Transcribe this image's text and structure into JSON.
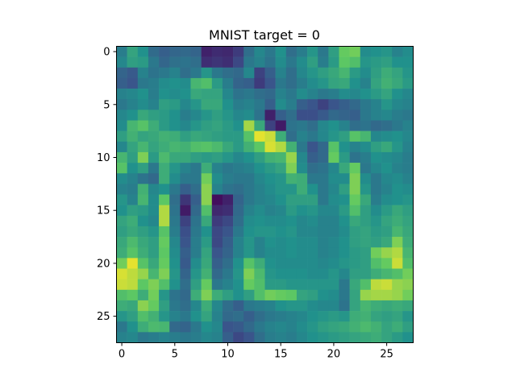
{
  "chart_data": {
    "type": "heatmap",
    "title": "MNIST target = 0",
    "xlabel": "",
    "ylabel": "",
    "xlim": [
      -0.5,
      27.5
    ],
    "ylim": [
      27.5,
      -0.5
    ],
    "x_ticks": [
      0,
      5,
      10,
      15,
      20,
      25
    ],
    "y_ticks": [
      0,
      5,
      10,
      15,
      20,
      25
    ],
    "colormap": "viridis",
    "grid": false,
    "legend": "none",
    "value_range": [
      0,
      1
    ],
    "z": [
      [
        0.42,
        0.58,
        0.5,
        0.35,
        0.3,
        0.33,
        0.34,
        0.32,
        0.1,
        0.13,
        0.12,
        0.18,
        0.36,
        0.46,
        0.4,
        0.5,
        0.36,
        0.42,
        0.52,
        0.4,
        0.56,
        0.76,
        0.78,
        0.48,
        0.5,
        0.52,
        0.44,
        0.48
      ],
      [
        0.46,
        0.56,
        0.54,
        0.4,
        0.33,
        0.37,
        0.38,
        0.36,
        0.14,
        0.16,
        0.14,
        0.22,
        0.4,
        0.44,
        0.38,
        0.48,
        0.4,
        0.48,
        0.56,
        0.42,
        0.54,
        0.74,
        0.7,
        0.52,
        0.54,
        0.56,
        0.5,
        0.5
      ],
      [
        0.32,
        0.28,
        0.44,
        0.38,
        0.4,
        0.44,
        0.36,
        0.4,
        0.52,
        0.4,
        0.36,
        0.34,
        0.46,
        0.2,
        0.3,
        0.44,
        0.36,
        0.46,
        0.52,
        0.56,
        0.6,
        0.66,
        0.54,
        0.48,
        0.56,
        0.62,
        0.58,
        0.52
      ],
      [
        0.3,
        0.26,
        0.4,
        0.42,
        0.48,
        0.5,
        0.48,
        0.66,
        0.7,
        0.54,
        0.42,
        0.32,
        0.3,
        0.18,
        0.26,
        0.4,
        0.36,
        0.42,
        0.48,
        0.52,
        0.58,
        0.6,
        0.5,
        0.44,
        0.58,
        0.64,
        0.6,
        0.54
      ],
      [
        0.44,
        0.46,
        0.5,
        0.42,
        0.5,
        0.48,
        0.5,
        0.6,
        0.58,
        0.58,
        0.46,
        0.38,
        0.4,
        0.36,
        0.34,
        0.44,
        0.4,
        0.48,
        0.44,
        0.4,
        0.42,
        0.48,
        0.46,
        0.5,
        0.54,
        0.58,
        0.5,
        0.46
      ],
      [
        0.4,
        0.44,
        0.48,
        0.44,
        0.56,
        0.54,
        0.46,
        0.52,
        0.6,
        0.6,
        0.5,
        0.42,
        0.44,
        0.4,
        0.3,
        0.48,
        0.42,
        0.3,
        0.26,
        0.2,
        0.26,
        0.3,
        0.34,
        0.4,
        0.44,
        0.52,
        0.46,
        0.44
      ],
      [
        0.46,
        0.5,
        0.6,
        0.56,
        0.54,
        0.5,
        0.42,
        0.46,
        0.52,
        0.56,
        0.52,
        0.46,
        0.48,
        0.38,
        0.1,
        0.3,
        0.36,
        0.24,
        0.24,
        0.28,
        0.34,
        0.32,
        0.3,
        0.4,
        0.44,
        0.46,
        0.42,
        0.4
      ],
      [
        0.48,
        0.66,
        0.72,
        0.62,
        0.54,
        0.5,
        0.46,
        0.52,
        0.56,
        0.58,
        0.54,
        0.5,
        0.86,
        0.6,
        0.2,
        0.08,
        0.38,
        0.4,
        0.36,
        0.46,
        0.5,
        0.44,
        0.36,
        0.38,
        0.34,
        0.36,
        0.4,
        0.44
      ],
      [
        0.56,
        0.64,
        0.58,
        0.6,
        0.64,
        0.62,
        0.56,
        0.6,
        0.58,
        0.56,
        0.54,
        0.54,
        0.72,
        0.96,
        0.92,
        0.62,
        0.36,
        0.44,
        0.4,
        0.46,
        0.52,
        0.56,
        0.72,
        0.66,
        0.46,
        0.48,
        0.5,
        0.46
      ],
      [
        0.46,
        0.58,
        0.66,
        0.58,
        0.62,
        0.66,
        0.64,
        0.7,
        0.72,
        0.68,
        0.6,
        0.54,
        0.64,
        0.74,
        0.94,
        0.88,
        0.64,
        0.4,
        0.26,
        0.34,
        0.72,
        0.5,
        0.44,
        0.48,
        0.56,
        0.6,
        0.52,
        0.44
      ],
      [
        0.66,
        0.56,
        0.8,
        0.54,
        0.68,
        0.6,
        0.6,
        0.56,
        0.54,
        0.56,
        0.52,
        0.46,
        0.5,
        0.56,
        0.64,
        0.66,
        0.84,
        0.46,
        0.3,
        0.34,
        0.76,
        0.54,
        0.38,
        0.42,
        0.5,
        0.48,
        0.46,
        0.42
      ],
      [
        0.72,
        0.5,
        0.56,
        0.4,
        0.62,
        0.52,
        0.44,
        0.4,
        0.62,
        0.44,
        0.4,
        0.42,
        0.44,
        0.5,
        0.54,
        0.58,
        0.8,
        0.48,
        0.36,
        0.38,
        0.46,
        0.6,
        0.76,
        0.4,
        0.46,
        0.5,
        0.44,
        0.42
      ],
      [
        0.48,
        0.44,
        0.38,
        0.34,
        0.62,
        0.48,
        0.4,
        0.4,
        0.78,
        0.48,
        0.42,
        0.4,
        0.4,
        0.46,
        0.5,
        0.52,
        0.64,
        0.62,
        0.4,
        0.4,
        0.48,
        0.48,
        0.8,
        0.48,
        0.4,
        0.46,
        0.48,
        0.44
      ],
      [
        0.44,
        0.42,
        0.64,
        0.46,
        0.5,
        0.4,
        0.3,
        0.36,
        0.82,
        0.44,
        0.38,
        0.36,
        0.4,
        0.44,
        0.48,
        0.52,
        0.52,
        0.62,
        0.5,
        0.4,
        0.46,
        0.56,
        0.8,
        0.52,
        0.4,
        0.44,
        0.5,
        0.48
      ],
      [
        0.52,
        0.44,
        0.66,
        0.48,
        0.74,
        0.36,
        0.16,
        0.3,
        0.82,
        0.04,
        0.1,
        0.32,
        0.4,
        0.44,
        0.46,
        0.5,
        0.56,
        0.56,
        0.56,
        0.4,
        0.48,
        0.5,
        0.76,
        0.6,
        0.42,
        0.48,
        0.5,
        0.52
      ],
      [
        0.5,
        0.56,
        0.54,
        0.48,
        0.88,
        0.38,
        0.08,
        0.34,
        0.7,
        0.12,
        0.14,
        0.34,
        0.44,
        0.48,
        0.44,
        0.46,
        0.54,
        0.5,
        0.52,
        0.46,
        0.46,
        0.54,
        0.7,
        0.56,
        0.48,
        0.54,
        0.6,
        0.56
      ],
      [
        0.58,
        0.62,
        0.5,
        0.46,
        0.88,
        0.4,
        0.2,
        0.38,
        0.6,
        0.18,
        0.22,
        0.36,
        0.48,
        0.5,
        0.48,
        0.48,
        0.5,
        0.46,
        0.48,
        0.44,
        0.44,
        0.5,
        0.6,
        0.56,
        0.52,
        0.58,
        0.62,
        0.58
      ],
      [
        0.56,
        0.6,
        0.56,
        0.52,
        0.72,
        0.42,
        0.24,
        0.4,
        0.5,
        0.22,
        0.26,
        0.4,
        0.5,
        0.52,
        0.52,
        0.5,
        0.52,
        0.46,
        0.46,
        0.44,
        0.44,
        0.48,
        0.56,
        0.58,
        0.54,
        0.56,
        0.66,
        0.6
      ],
      [
        0.6,
        0.68,
        0.6,
        0.56,
        0.76,
        0.46,
        0.26,
        0.42,
        0.54,
        0.22,
        0.3,
        0.44,
        0.52,
        0.44,
        0.5,
        0.48,
        0.5,
        0.48,
        0.48,
        0.44,
        0.46,
        0.5,
        0.56,
        0.58,
        0.56,
        0.6,
        0.8,
        0.62
      ],
      [
        0.62,
        0.72,
        0.62,
        0.56,
        0.74,
        0.48,
        0.3,
        0.42,
        0.58,
        0.26,
        0.32,
        0.44,
        0.52,
        0.44,
        0.48,
        0.48,
        0.5,
        0.48,
        0.48,
        0.44,
        0.46,
        0.5,
        0.54,
        0.56,
        0.78,
        0.84,
        0.88,
        0.66
      ],
      [
        0.78,
        0.96,
        0.72,
        0.6,
        0.76,
        0.5,
        0.28,
        0.48,
        0.6,
        0.3,
        0.36,
        0.5,
        0.72,
        0.62,
        0.5,
        0.48,
        0.48,
        0.48,
        0.48,
        0.46,
        0.48,
        0.52,
        0.54,
        0.56,
        0.7,
        0.76,
        0.92,
        0.7
      ],
      [
        0.94,
        0.9,
        0.84,
        0.66,
        0.8,
        0.52,
        0.32,
        0.52,
        0.64,
        0.34,
        0.4,
        0.52,
        0.8,
        0.68,
        0.52,
        0.5,
        0.5,
        0.5,
        0.48,
        0.48,
        0.52,
        0.46,
        0.56,
        0.56,
        0.62,
        0.66,
        0.7,
        0.78
      ],
      [
        0.92,
        0.9,
        0.74,
        0.8,
        0.7,
        0.5,
        0.36,
        0.56,
        0.76,
        0.4,
        0.44,
        0.5,
        0.76,
        0.7,
        0.54,
        0.54,
        0.52,
        0.52,
        0.52,
        0.52,
        0.52,
        0.4,
        0.6,
        0.7,
        0.9,
        0.92,
        0.84,
        0.82
      ],
      [
        0.7,
        0.74,
        0.62,
        0.78,
        0.52,
        0.38,
        0.34,
        0.62,
        0.8,
        0.62,
        0.56,
        0.5,
        0.56,
        0.7,
        0.78,
        0.76,
        0.74,
        0.58,
        0.56,
        0.5,
        0.48,
        0.4,
        0.58,
        0.84,
        0.86,
        0.86,
        0.84,
        0.78
      ],
      [
        0.62,
        0.6,
        0.82,
        0.76,
        0.56,
        0.4,
        0.36,
        0.46,
        0.62,
        0.46,
        0.36,
        0.3,
        0.4,
        0.42,
        0.44,
        0.5,
        0.52,
        0.52,
        0.48,
        0.46,
        0.46,
        0.38,
        0.58,
        0.66,
        0.62,
        0.6,
        0.62,
        0.6
      ],
      [
        0.52,
        0.56,
        0.7,
        0.64,
        0.52,
        0.44,
        0.4,
        0.5,
        0.58,
        0.44,
        0.34,
        0.36,
        0.3,
        0.36,
        0.4,
        0.42,
        0.44,
        0.46,
        0.5,
        0.52,
        0.54,
        0.52,
        0.62,
        0.64,
        0.58,
        0.56,
        0.58,
        0.52
      ],
      [
        0.4,
        0.5,
        0.62,
        0.68,
        0.66,
        0.34,
        0.32,
        0.4,
        0.5,
        0.46,
        0.26,
        0.28,
        0.34,
        0.4,
        0.44,
        0.46,
        0.44,
        0.48,
        0.52,
        0.56,
        0.58,
        0.6,
        0.64,
        0.68,
        0.64,
        0.58,
        0.62,
        0.56
      ],
      [
        0.44,
        0.46,
        0.4,
        0.42,
        0.44,
        0.42,
        0.4,
        0.42,
        0.46,
        0.44,
        0.3,
        0.22,
        0.26,
        0.36,
        0.42,
        0.44,
        0.42,
        0.46,
        0.5,
        0.52,
        0.54,
        0.56,
        0.58,
        0.6,
        0.62,
        0.58,
        0.54,
        0.5
      ]
    ]
  }
}
